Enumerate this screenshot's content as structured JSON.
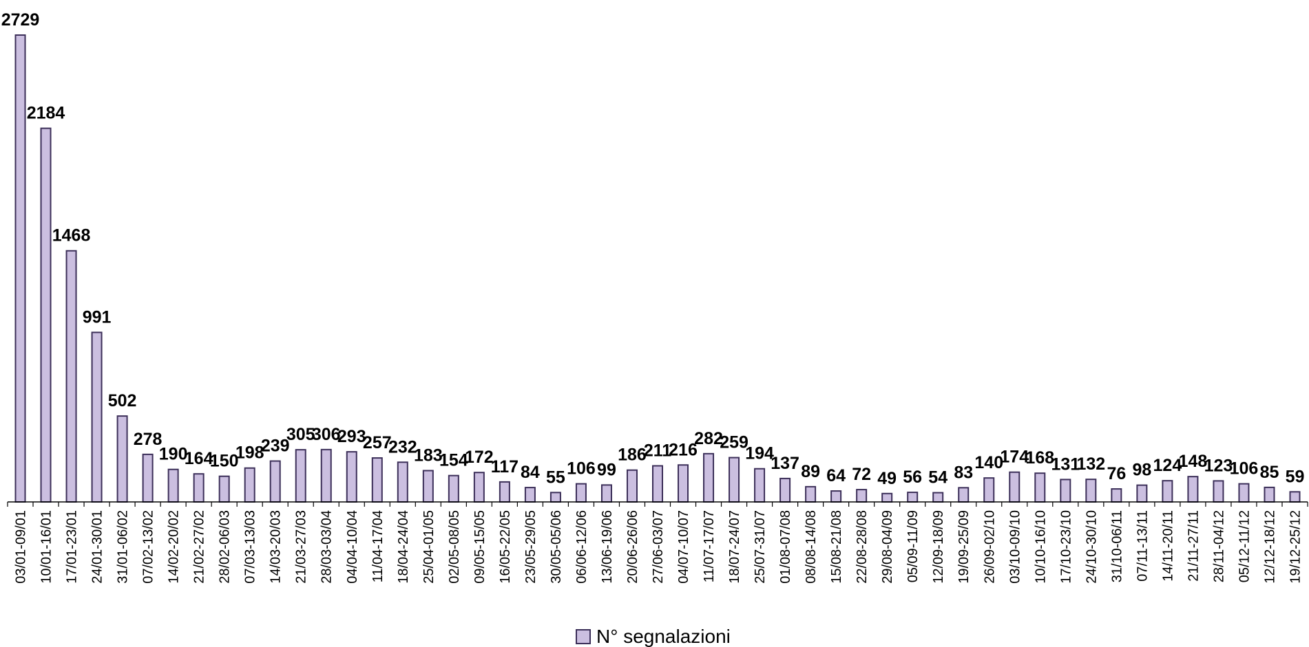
{
  "chart_data": {
    "type": "bar",
    "title": "",
    "xlabel": "",
    "ylabel": "",
    "ylim": [
      0,
      2729
    ],
    "grid": false,
    "legend_position": "bottom",
    "colors": {
      "bar_fill": "#cbbfe0",
      "bar_stroke": "#3b2e58"
    },
    "categories": [
      "03/01-09/01",
      "10/01-16/01",
      "17/01-23/01",
      "24/01-30/01",
      "31/01-06/02",
      "07/02-13/02",
      "14/02-20/02",
      "21/02-27/02",
      "28/02-06/03",
      "07/03-13/03",
      "14/03-20/03",
      "21/03-27/03",
      "28/03-03/04",
      "04/04-10/04",
      "11/04-17/04",
      "18/04-24/04",
      "25/04-01/05",
      "02/05-08/05",
      "09/05-15/05",
      "16/05-22/05",
      "23/05-29/05",
      "30/05-05/06",
      "06/06-12/06",
      "13/06-19/06",
      "20/06-26/06",
      "27/06-03/07",
      "04/07-10/07",
      "11/07-17/07",
      "18/07-24/07",
      "25/07-31/07",
      "01/08-07/08",
      "08/08-14/08",
      "15/08-21/08",
      "22/08-28/08",
      "29/08-04/09",
      "05/09-11/09",
      "12/09-18/09",
      "19/09-25/09",
      "26/09-02/10",
      "03/10-09/10",
      "10/10-16/10",
      "17/10-23/10",
      "24/10-30/10",
      "31/10-06/11",
      "07/11-13/11",
      "14/11-20/11",
      "21/11-27/11",
      "28/11-04/12",
      "05/12-11/12",
      "12/12-18/12",
      "19/12-25/12"
    ],
    "series": [
      {
        "name": "N° segnalazioni",
        "values": [
          2729,
          2184,
          1468,
          991,
          502,
          278,
          190,
          164,
          150,
          198,
          239,
          305,
          306,
          293,
          257,
          232,
          183,
          154,
          172,
          117,
          84,
          55,
          106,
          99,
          186,
          211,
          216,
          282,
          259,
          194,
          137,
          89,
          64,
          72,
          49,
          56,
          54,
          83,
          140,
          174,
          168,
          131,
          132,
          76,
          98,
          124,
          148,
          123,
          106,
          85,
          59
        ]
      }
    ]
  }
}
